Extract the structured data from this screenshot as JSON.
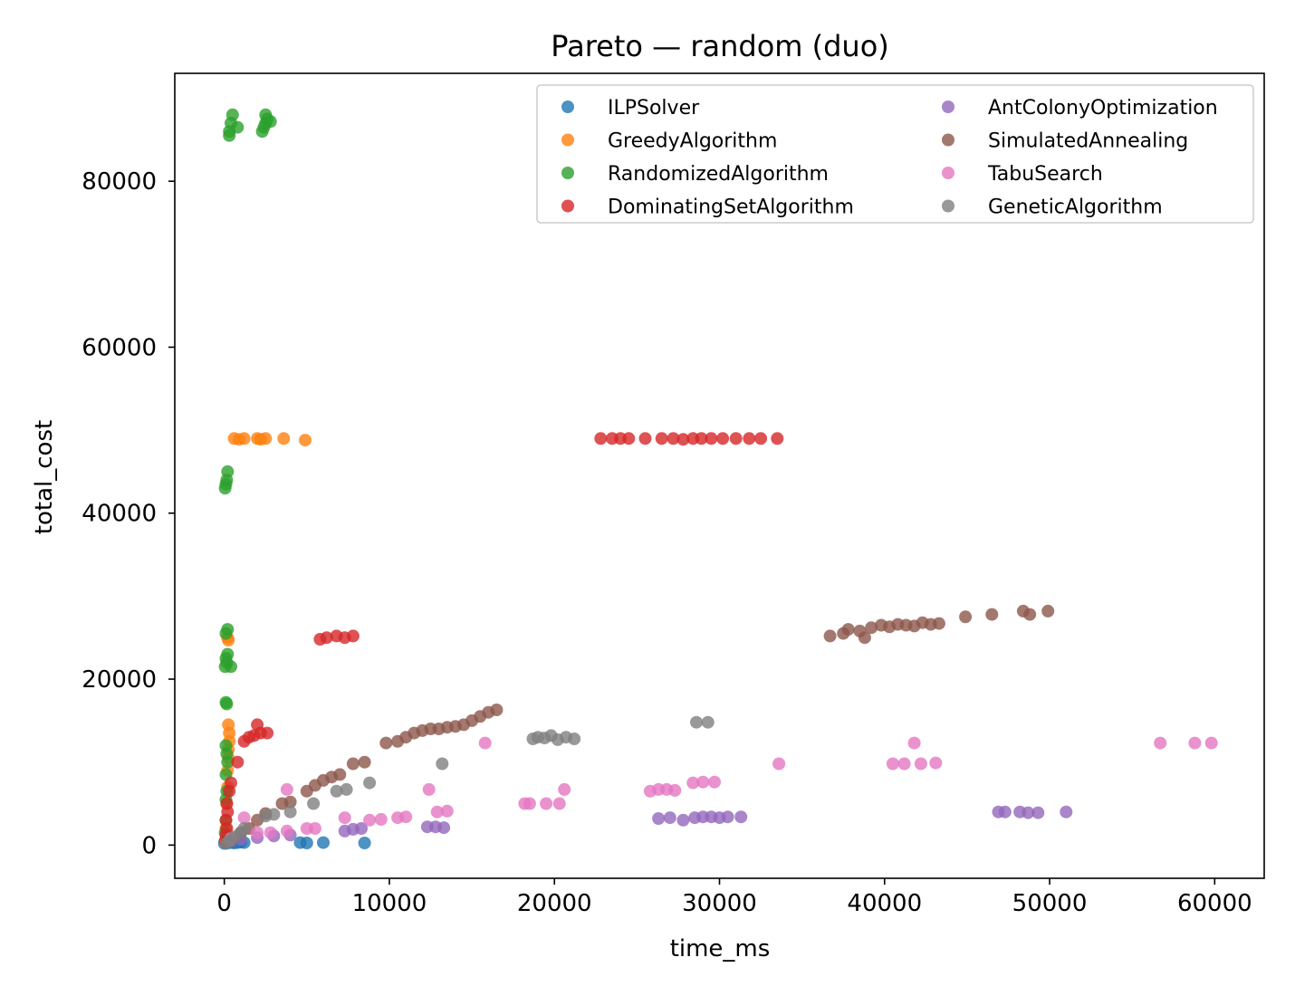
{
  "chart_data": {
    "type": "scatter",
    "title": "Pareto — random (duo)",
    "xlabel": "time_ms",
    "ylabel": "total_cost",
    "xlim": [
      -3000,
      63000
    ],
    "ylim": [
      -4000,
      93000
    ],
    "xticks": [
      0,
      10000,
      20000,
      30000,
      40000,
      50000,
      60000
    ],
    "xtick_labels": [
      "0",
      "10000",
      "20000",
      "30000",
      "40000",
      "50000",
      "60000"
    ],
    "yticks": [
      0,
      20000,
      40000,
      60000,
      80000
    ],
    "ytick_labels": [
      "0",
      "20000",
      "40000",
      "60000",
      "80000"
    ],
    "grid": false,
    "legend_position": "top-right",
    "legend_columns": 2,
    "series": [
      {
        "name": "ILPSolver",
        "color": "#1f77b4",
        "points": [
          [
            0,
            200
          ],
          [
            100,
            300
          ],
          [
            200,
            250
          ],
          [
            400,
            300
          ],
          [
            600,
            250
          ],
          [
            800,
            300
          ],
          [
            1000,
            350
          ],
          [
            1200,
            300
          ],
          [
            4600,
            300
          ],
          [
            5000,
            250
          ],
          [
            6000,
            300
          ],
          [
            8500,
            250
          ]
        ]
      },
      {
        "name": "GreedyAlgorithm",
        "color": "#ff7f0e",
        "points": [
          [
            50,
            500
          ],
          [
            100,
            2000
          ],
          [
            150,
            5000
          ],
          [
            200,
            7000
          ],
          [
            200,
            9000
          ],
          [
            250,
            10500
          ],
          [
            250,
            11500
          ],
          [
            300,
            12500
          ],
          [
            300,
            13500
          ],
          [
            250,
            14500
          ],
          [
            200,
            25000
          ],
          [
            250,
            24700
          ],
          [
            600,
            49000
          ],
          [
            900,
            48900
          ],
          [
            1200,
            49000
          ],
          [
            2000,
            49000
          ],
          [
            2200,
            48900
          ],
          [
            2500,
            49000
          ],
          [
            3600,
            49000
          ],
          [
            4900,
            48800
          ]
        ]
      },
      {
        "name": "RandomizedAlgorithm",
        "color": "#2ca02c",
        "points": [
          [
            50,
            1500
          ],
          [
            100,
            3000
          ],
          [
            100,
            5500
          ],
          [
            150,
            6500
          ],
          [
            100,
            8500
          ],
          [
            200,
            10000
          ],
          [
            150,
            11000
          ],
          [
            100,
            12000
          ],
          [
            150,
            17000
          ],
          [
            100,
            17200
          ],
          [
            50,
            21500
          ],
          [
            150,
            22000
          ],
          [
            100,
            22500
          ],
          [
            200,
            23000
          ],
          [
            100,
            25500
          ],
          [
            200,
            26000
          ],
          [
            400,
            21500
          ],
          [
            50,
            43000
          ],
          [
            100,
            43500
          ],
          [
            150,
            44000
          ],
          [
            200,
            45000
          ],
          [
            300,
            86000
          ],
          [
            400,
            87000
          ],
          [
            500,
            88000
          ],
          [
            300,
            85500
          ],
          [
            800,
            86500
          ],
          [
            2300,
            86000
          ],
          [
            2500,
            87000
          ],
          [
            2600,
            87500
          ],
          [
            2400,
            86500
          ],
          [
            2800,
            87200
          ],
          [
            2500,
            88000
          ]
        ]
      },
      {
        "name": "DominatingSetAlgorithm",
        "color": "#d62728",
        "points": [
          [
            50,
            500
          ],
          [
            100,
            1200
          ],
          [
            150,
            2000
          ],
          [
            100,
            3000
          ],
          [
            200,
            4000
          ],
          [
            150,
            5000
          ],
          [
            300,
            6500
          ],
          [
            400,
            7500
          ],
          [
            800,
            10000
          ],
          [
            1200,
            12500
          ],
          [
            1500,
            13000
          ],
          [
            1800,
            13200
          ],
          [
            2200,
            13500
          ],
          [
            2600,
            13500
          ],
          [
            2000,
            14500
          ],
          [
            5800,
            24800
          ],
          [
            6200,
            25000
          ],
          [
            6800,
            25200
          ],
          [
            7300,
            25000
          ],
          [
            7800,
            25200
          ],
          [
            22800,
            49000
          ],
          [
            23500,
            49000
          ],
          [
            24000,
            49000
          ],
          [
            24500,
            49000
          ],
          [
            25500,
            49000
          ],
          [
            26500,
            49000
          ],
          [
            27200,
            49000
          ],
          [
            27800,
            48900
          ],
          [
            28400,
            49000
          ],
          [
            28900,
            49000
          ],
          [
            29500,
            49000
          ],
          [
            30200,
            49000
          ],
          [
            31000,
            49000
          ],
          [
            31800,
            49000
          ],
          [
            32500,
            49000
          ],
          [
            33500,
            49000
          ]
        ]
      },
      {
        "name": "AntColonyOptimization",
        "color": "#9467bd",
        "points": [
          [
            400,
            500
          ],
          [
            1000,
            700
          ],
          [
            2000,
            900
          ],
          [
            3000,
            1100
          ],
          [
            4000,
            1200
          ],
          [
            7300,
            1700
          ],
          [
            7800,
            1900
          ],
          [
            8300,
            2000
          ],
          [
            12300,
            2200
          ],
          [
            12800,
            2200
          ],
          [
            13300,
            2100
          ],
          [
            26300,
            3200
          ],
          [
            27000,
            3300
          ],
          [
            27800,
            3000
          ],
          [
            28500,
            3300
          ],
          [
            29000,
            3400
          ],
          [
            29500,
            3400
          ],
          [
            30000,
            3300
          ],
          [
            30500,
            3400
          ],
          [
            31300,
            3400
          ],
          [
            46900,
            4000
          ],
          [
            47300,
            4000
          ],
          [
            48200,
            4000
          ],
          [
            48700,
            3900
          ],
          [
            49300,
            3900
          ],
          [
            51000,
            4000
          ]
        ]
      },
      {
        "name": "SimulatedAnnealing",
        "color": "#8c564b",
        "points": [
          [
            500,
            800
          ],
          [
            1000,
            1500
          ],
          [
            1500,
            2000
          ],
          [
            2000,
            3000
          ],
          [
            2500,
            3800
          ],
          [
            3500,
            5000
          ],
          [
            4000,
            5200
          ],
          [
            5000,
            6500
          ],
          [
            5500,
            7200
          ],
          [
            6000,
            7800
          ],
          [
            6500,
            8200
          ],
          [
            7000,
            8500
          ],
          [
            7800,
            9800
          ],
          [
            8500,
            10000
          ],
          [
            9800,
            12300
          ],
          [
            10500,
            12500
          ],
          [
            11000,
            13000
          ],
          [
            11500,
            13500
          ],
          [
            12000,
            13800
          ],
          [
            12500,
            14000
          ],
          [
            13000,
            14000
          ],
          [
            13500,
            14200
          ],
          [
            14000,
            14300
          ],
          [
            14500,
            14500
          ],
          [
            15000,
            15000
          ],
          [
            15500,
            15500
          ],
          [
            16000,
            16000
          ],
          [
            16500,
            16300
          ],
          [
            36700,
            25200
          ],
          [
            37500,
            25500
          ],
          [
            37800,
            26000
          ],
          [
            38500,
            25800
          ],
          [
            38800,
            25000
          ],
          [
            39200,
            26200
          ],
          [
            39800,
            26500
          ],
          [
            40300,
            26300
          ],
          [
            40800,
            26600
          ],
          [
            41300,
            26500
          ],
          [
            41800,
            26400
          ],
          [
            42300,
            26800
          ],
          [
            42800,
            26600
          ],
          [
            43300,
            26700
          ],
          [
            44900,
            27500
          ],
          [
            46500,
            27800
          ],
          [
            48400,
            28200
          ],
          [
            48800,
            27800
          ],
          [
            49900,
            28200
          ]
        ]
      },
      {
        "name": "TabuSearch",
        "color": "#e377c2",
        "points": [
          [
            400,
            800
          ],
          [
            1200,
            3300
          ],
          [
            2000,
            1500
          ],
          [
            2800,
            1500
          ],
          [
            3800,
            1700
          ],
          [
            3800,
            6700
          ],
          [
            5000,
            2000
          ],
          [
            5500,
            2000
          ],
          [
            7300,
            3300
          ],
          [
            8800,
            3000
          ],
          [
            9500,
            3100
          ],
          [
            10500,
            3300
          ],
          [
            11000,
            3400
          ],
          [
            12400,
            6700
          ],
          [
            12900,
            4000
          ],
          [
            13500,
            4100
          ],
          [
            15800,
            12300
          ],
          [
            18200,
            5000
          ],
          [
            18500,
            5000
          ],
          [
            19500,
            5000
          ],
          [
            20300,
            5000
          ],
          [
            20600,
            6700
          ],
          [
            25800,
            6500
          ],
          [
            26300,
            6700
          ],
          [
            26800,
            6700
          ],
          [
            27300,
            6600
          ],
          [
            28400,
            7500
          ],
          [
            29000,
            7600
          ],
          [
            29700,
            7600
          ],
          [
            33600,
            9800
          ],
          [
            40500,
            9800
          ],
          [
            41200,
            9800
          ],
          [
            41800,
            12300
          ],
          [
            42200,
            9800
          ],
          [
            43100,
            9900
          ],
          [
            56700,
            12300
          ],
          [
            58800,
            12300
          ],
          [
            59800,
            12300
          ]
        ]
      },
      {
        "name": "GeneticAlgorithm",
        "color": "#7f7f7f",
        "points": [
          [
            100,
            200
          ],
          [
            300,
            500
          ],
          [
            600,
            1000
          ],
          [
            1000,
            1500
          ],
          [
            1200,
            2000
          ],
          [
            2500,
            3500
          ],
          [
            3000,
            3700
          ],
          [
            4000,
            4000
          ],
          [
            5400,
            5000
          ],
          [
            6800,
            6500
          ],
          [
            7400,
            6700
          ],
          [
            8800,
            7500
          ],
          [
            13200,
            9800
          ],
          [
            18700,
            12800
          ],
          [
            19000,
            13000
          ],
          [
            19400,
            12900
          ],
          [
            19800,
            13200
          ],
          [
            20200,
            12700
          ],
          [
            20700,
            13000
          ],
          [
            21200,
            12800
          ],
          [
            28600,
            14800
          ],
          [
            29300,
            14800
          ]
        ]
      }
    ]
  }
}
